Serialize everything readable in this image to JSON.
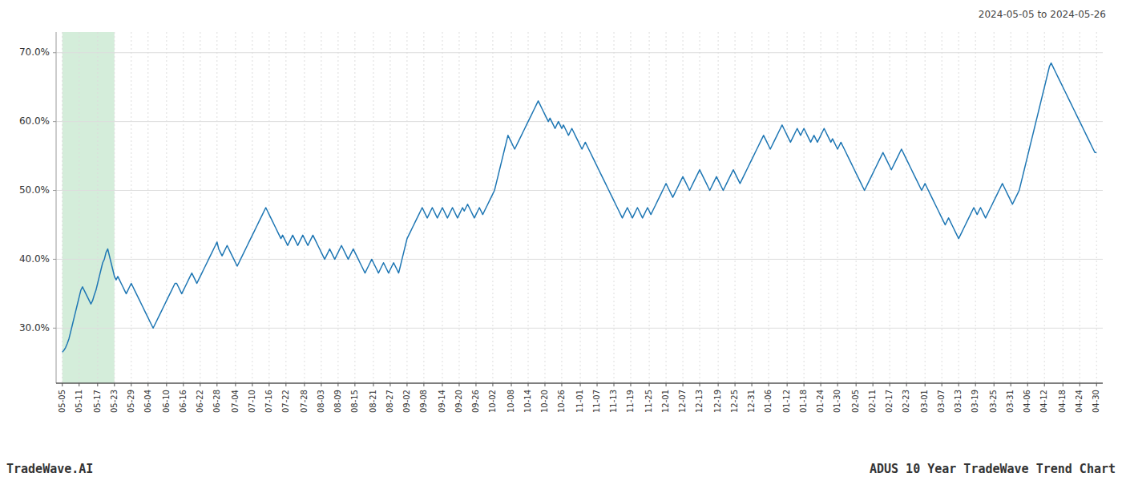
{
  "chart_data": {
    "type": "line",
    "title": "ADUS 10 Year TradeWave Trend Chart",
    "subtitle": "2024-05-05 to 2024-05-26",
    "annotations": [
      "TradeWave.AI"
    ],
    "color": "#1f77b4",
    "grid": true,
    "ylim": [
      22,
      73
    ],
    "yticks": [
      {
        "value": 30.0,
        "label": "30.0%"
      },
      {
        "value": 40.0,
        "label": "40.0%"
      },
      {
        "value": 50.0,
        "label": "50.0%"
      },
      {
        "value": 60.0,
        "label": "60.0%"
      },
      {
        "value": 70.0,
        "label": "70.0%"
      }
    ],
    "highlight": {
      "start": "05-05",
      "end": "05-23",
      "color": "#d4edda"
    },
    "categories": [
      "05-05",
      null,
      null,
      null,
      null,
      null,
      null,
      null,
      null,
      null,
      "05-11",
      null,
      null,
      null,
      null,
      null,
      null,
      null,
      null,
      null,
      null,
      "05-17",
      null,
      null,
      null,
      null,
      null,
      null,
      null,
      null,
      null,
      "05-23",
      null,
      null,
      null,
      null,
      null,
      null,
      null,
      null,
      null,
      "05-29",
      null,
      null,
      null,
      null,
      null,
      null,
      null,
      null,
      null,
      "06-04",
      null,
      null,
      null,
      null,
      null,
      null,
      null,
      null,
      null,
      null,
      "06-10",
      null,
      null,
      null,
      null,
      null,
      null,
      null,
      null,
      null,
      "06-16",
      null,
      null,
      null,
      null,
      null,
      null,
      null,
      null,
      null,
      "06-22",
      null,
      null,
      null,
      null,
      null,
      null,
      null,
      null,
      null,
      "06-28",
      null,
      null,
      null,
      null,
      null,
      null,
      null,
      null,
      null,
      null,
      "07-04",
      null,
      null,
      null,
      null,
      null,
      null,
      null,
      null,
      null,
      "07-10",
      null,
      null,
      null,
      null,
      null,
      null,
      null,
      null,
      null,
      "07-16",
      null,
      null,
      null,
      null,
      null,
      null,
      null,
      null,
      null,
      "07-22",
      null,
      null,
      null,
      null,
      null,
      null,
      null,
      null,
      null,
      null,
      "07-28",
      null,
      null,
      null,
      null,
      null,
      null,
      null,
      null,
      null,
      "08-03",
      null,
      null,
      null,
      null,
      null,
      null,
      null,
      null,
      null,
      "08-09",
      null,
      null,
      null,
      null,
      null,
      null,
      null,
      null,
      null,
      "08-15",
      null,
      null,
      null,
      null,
      null,
      null,
      null,
      null,
      null,
      null,
      "08-21",
      null,
      null,
      null,
      null,
      null,
      null,
      null,
      null,
      null,
      "08-27",
      null,
      null,
      null,
      null,
      null,
      null,
      null,
      null,
      null,
      "09-02",
      null,
      null,
      null,
      null,
      null,
      null,
      null,
      null,
      null,
      "09-08",
      null,
      null,
      null,
      null,
      null,
      null,
      null,
      null,
      null,
      null,
      "09-14",
      null,
      null,
      null,
      null,
      null,
      null,
      null,
      null,
      null,
      "09-20",
      null,
      null,
      null,
      null,
      null,
      null,
      null,
      null,
      null,
      "09-26",
      null,
      null,
      null,
      null,
      null,
      null,
      null,
      null,
      null,
      "10-02",
      null,
      null,
      null,
      null,
      null,
      null,
      null,
      null,
      null,
      null,
      "10-08",
      null,
      null,
      null,
      null,
      null,
      null,
      null,
      null,
      null,
      "10-14",
      null,
      null,
      null,
      null,
      null,
      null,
      null,
      null,
      null,
      "10-20",
      null,
      null,
      null,
      null,
      null,
      null,
      null,
      null,
      null,
      "10-26",
      null,
      null,
      null,
      null,
      null,
      null,
      null,
      null,
      null,
      null,
      "11-01",
      null,
      null,
      null,
      null,
      null,
      null,
      null,
      null,
      null,
      "11-07",
      null,
      null,
      null,
      null,
      null,
      null,
      null,
      null,
      null,
      "11-13",
      null,
      null,
      null,
      null,
      null,
      null,
      null,
      null,
      null,
      "11-19",
      null,
      null,
      null,
      null,
      null,
      null,
      null,
      null,
      null,
      null,
      "11-25",
      null,
      null,
      null,
      null,
      null,
      null,
      null,
      null,
      null,
      "12-01",
      null,
      null,
      null,
      null,
      null,
      null,
      null,
      null,
      null,
      "12-07",
      null,
      null,
      null,
      null,
      null,
      null,
      null,
      null,
      null,
      "12-13",
      null,
      null,
      null,
      null,
      null,
      null,
      null,
      null,
      null,
      null,
      "12-19",
      null,
      null,
      null,
      null,
      null,
      null,
      null,
      null,
      null,
      "12-25",
      null,
      null,
      null,
      null,
      null,
      null,
      null,
      null,
      null,
      "12-31",
      null,
      null,
      null,
      null,
      null,
      null,
      null,
      null,
      null,
      "01-06",
      null,
      null,
      null,
      null,
      null,
      null,
      null,
      null,
      null,
      null,
      "01-12",
      null,
      null,
      null,
      null,
      null,
      null,
      null,
      null,
      null,
      "01-18",
      null,
      null,
      null,
      null,
      null,
      null,
      null,
      null,
      null,
      "01-24",
      null,
      null,
      null,
      null,
      null,
      null,
      null,
      null,
      null,
      "01-30",
      null,
      null,
      null,
      null,
      null,
      null,
      null,
      null,
      null,
      null,
      "02-05",
      null,
      null,
      null,
      null,
      null,
      null,
      null,
      null,
      null,
      "02-11",
      null,
      null,
      null,
      null,
      null,
      null,
      null,
      null,
      null,
      "02-17",
      null,
      null,
      null,
      null,
      null,
      null,
      null,
      null,
      null,
      "02-23",
      null,
      null,
      null,
      null,
      null,
      null,
      null,
      null,
      null,
      null,
      "03-01",
      null,
      null,
      null,
      null,
      null,
      null,
      null,
      null,
      null,
      "03-07",
      null,
      null,
      null,
      null,
      null,
      null,
      null,
      null,
      null,
      "03-13",
      null,
      null,
      null,
      null,
      null,
      null,
      null,
      null,
      null,
      "03-19",
      null,
      null,
      null,
      null,
      null,
      null,
      null,
      null,
      null,
      null,
      "03-25",
      null,
      null,
      null,
      null,
      null,
      null,
      null,
      null,
      null,
      "03-31",
      null,
      null,
      null,
      null,
      null,
      null,
      null,
      null,
      null,
      "04-06",
      null,
      null,
      null,
      null,
      null,
      null,
      null,
      null,
      null,
      "04-12",
      null,
      null,
      null,
      null,
      null,
      null,
      null,
      null,
      null,
      null,
      "04-18",
      null,
      null,
      null,
      null,
      null,
      null,
      null,
      null,
      null,
      "04-24",
      null,
      null,
      null,
      null,
      null,
      null,
      null,
      null,
      null,
      "04-30"
    ],
    "values": [
      26.5,
      26.8,
      27.2,
      27.8,
      28.5,
      29.5,
      30.5,
      31.5,
      32.5,
      33.5,
      34.5,
      35.5,
      36.0,
      35.5,
      35.0,
      34.5,
      34.0,
      33.5,
      34.0,
      34.8,
      35.5,
      36.5,
      37.5,
      38.5,
      39.5,
      40.0,
      41.0,
      41.5,
      40.5,
      39.5,
      38.5,
      37.5,
      37.0,
      37.5,
      37.0,
      36.5,
      36.0,
      35.5,
      35.0,
      35.5,
      36.0,
      36.5,
      36.0,
      35.5,
      35.0,
      34.5,
      34.0,
      33.5,
      33.0,
      32.5,
      32.0,
      31.5,
      31.0,
      30.5,
      30.0,
      30.5,
      31.0,
      31.5,
      32.0,
      32.5,
      33.0,
      33.5,
      34.0,
      34.5,
      35.0,
      35.5,
      36.0,
      36.5,
      36.5,
      36.0,
      35.5,
      35.0,
      35.5,
      36.0,
      36.5,
      37.0,
      37.5,
      38.0,
      37.5,
      37.0,
      36.5,
      37.0,
      37.5,
      38.0,
      38.5,
      39.0,
      39.5,
      40.0,
      40.5,
      41.0,
      41.5,
      42.0,
      42.5,
      41.5,
      41.0,
      40.5,
      41.0,
      41.5,
      42.0,
      41.5,
      41.0,
      40.5,
      40.0,
      39.5,
      39.0,
      39.5,
      40.0,
      40.5,
      41.0,
      41.5,
      42.0,
      42.5,
      43.0,
      43.5,
      44.0,
      44.5,
      45.0,
      45.5,
      46.0,
      46.5,
      47.0,
      47.5,
      47.0,
      46.5,
      46.0,
      45.5,
      45.0,
      44.5,
      44.0,
      43.5,
      43.0,
      43.5,
      43.0,
      42.5,
      42.0,
      42.5,
      43.0,
      43.5,
      43.0,
      42.5,
      42.0,
      42.5,
      43.0,
      43.5,
      43.0,
      42.5,
      42.0,
      42.5,
      43.0,
      43.5,
      43.0,
      42.5,
      42.0,
      41.5,
      41.0,
      40.5,
      40.0,
      40.5,
      41.0,
      41.5,
      41.0,
      40.5,
      40.0,
      40.5,
      41.0,
      41.5,
      42.0,
      41.5,
      41.0,
      40.5,
      40.0,
      40.5,
      41.0,
      41.5,
      41.0,
      40.5,
      40.0,
      39.5,
      39.0,
      38.5,
      38.0,
      38.5,
      39.0,
      39.5,
      40.0,
      39.5,
      39.0,
      38.5,
      38.0,
      38.5,
      39.0,
      39.5,
      39.0,
      38.5,
      38.0,
      38.5,
      39.0,
      39.5,
      39.0,
      38.5,
      38.0,
      39.0,
      40.0,
      41.0,
      42.0,
      43.0,
      43.5,
      44.0,
      44.5,
      45.0,
      45.5,
      46.0,
      46.5,
      47.0,
      47.5,
      47.0,
      46.5,
      46.0,
      46.5,
      47.0,
      47.5,
      47.0,
      46.5,
      46.0,
      46.5,
      47.0,
      47.5,
      47.0,
      46.5,
      46.0,
      46.5,
      47.0,
      47.5,
      47.0,
      46.5,
      46.0,
      46.5,
      47.0,
      47.5,
      47.0,
      47.5,
      48.0,
      47.5,
      47.0,
      46.5,
      46.0,
      46.5,
      47.0,
      47.5,
      47.0,
      46.5,
      47.0,
      47.5,
      48.0,
      48.5,
      49.0,
      49.5,
      50.0,
      51.0,
      52.0,
      53.0,
      54.0,
      55.0,
      56.0,
      57.0,
      58.0,
      57.5,
      57.0,
      56.5,
      56.0,
      56.5,
      57.0,
      57.5,
      58.0,
      58.5,
      59.0,
      59.5,
      60.0,
      60.5,
      61.0,
      61.5,
      62.0,
      62.5,
      63.0,
      62.5,
      62.0,
      61.5,
      61.0,
      60.5,
      60.0,
      60.5,
      60.0,
      59.5,
      59.0,
      59.5,
      60.0,
      59.5,
      59.0,
      59.5,
      59.0,
      58.5,
      58.0,
      58.5,
      59.0,
      58.5,
      58.0,
      57.5,
      57.0,
      56.5,
      56.0,
      56.5,
      57.0,
      56.5,
      56.0,
      55.5,
      55.0,
      54.5,
      54.0,
      53.5,
      53.0,
      52.5,
      52.0,
      51.5,
      51.0,
      50.5,
      50.0,
      49.5,
      49.0,
      48.5,
      48.0,
      47.5,
      47.0,
      46.5,
      46.0,
      46.5,
      47.0,
      47.5,
      47.0,
      46.5,
      46.0,
      46.5,
      47.0,
      47.5,
      47.0,
      46.5,
      46.0,
      46.5,
      47.0,
      47.5,
      47.0,
      46.5,
      47.0,
      47.5,
      48.0,
      48.5,
      49.0,
      49.5,
      50.0,
      50.5,
      51.0,
      50.5,
      50.0,
      49.5,
      49.0,
      49.5,
      50.0,
      50.5,
      51.0,
      51.5,
      52.0,
      51.5,
      51.0,
      50.5,
      50.0,
      50.5,
      51.0,
      51.5,
      52.0,
      52.5,
      53.0,
      52.5,
      52.0,
      51.5,
      51.0,
      50.5,
      50.0,
      50.5,
      51.0,
      51.5,
      52.0,
      51.5,
      51.0,
      50.5,
      50.0,
      50.5,
      51.0,
      51.5,
      52.0,
      52.5,
      53.0,
      52.5,
      52.0,
      51.5,
      51.0,
      51.5,
      52.0,
      52.5,
      53.0,
      53.5,
      54.0,
      54.5,
      55.0,
      55.5,
      56.0,
      56.5,
      57.0,
      57.5,
      58.0,
      57.5,
      57.0,
      56.5,
      56.0,
      56.5,
      57.0,
      57.5,
      58.0,
      58.5,
      59.0,
      59.5,
      59.0,
      58.5,
      58.0,
      57.5,
      57.0,
      57.5,
      58.0,
      58.5,
      59.0,
      58.5,
      58.0,
      58.5,
      59.0,
      58.5,
      58.0,
      57.5,
      57.0,
      57.5,
      58.0,
      57.5,
      57.0,
      57.5,
      58.0,
      58.5,
      59.0,
      58.5,
      58.0,
      57.5,
      57.0,
      57.5,
      57.0,
      56.5,
      56.0,
      56.5,
      57.0,
      56.5,
      56.0,
      55.5,
      55.0,
      54.5,
      54.0,
      53.5,
      53.0,
      52.5,
      52.0,
      51.5,
      51.0,
      50.5,
      50.0,
      50.5,
      51.0,
      51.5,
      52.0,
      52.5,
      53.0,
      53.5,
      54.0,
      54.5,
      55.0,
      55.5,
      55.0,
      54.5,
      54.0,
      53.5,
      53.0,
      53.5,
      54.0,
      54.5,
      55.0,
      55.5,
      56.0,
      55.5,
      55.0,
      54.5,
      54.0,
      53.5,
      53.0,
      52.5,
      52.0,
      51.5,
      51.0,
      50.5,
      50.0,
      50.5,
      51.0,
      50.5,
      50.0,
      49.5,
      49.0,
      48.5,
      48.0,
      47.5,
      47.0,
      46.5,
      46.0,
      45.5,
      45.0,
      45.5,
      46.0,
      45.5,
      45.0,
      44.5,
      44.0,
      43.5,
      43.0,
      43.5,
      44.0,
      44.5,
      45.0,
      45.5,
      46.0,
      46.5,
      47.0,
      47.5,
      47.0,
      46.5,
      47.0,
      47.5,
      47.0,
      46.5,
      46.0,
      46.5,
      47.0,
      47.5,
      48.0,
      48.5,
      49.0,
      49.5,
      50.0,
      50.5,
      51.0,
      50.5,
      50.0,
      49.5,
      49.0,
      48.5,
      48.0,
      48.5,
      49.0,
      49.5,
      50.0,
      51.0,
      52.0,
      53.0,
      54.0,
      55.0,
      56.0,
      57.0,
      58.0,
      59.0,
      60.0,
      61.0,
      62.0,
      63.0,
      64.0,
      65.0,
      66.0,
      67.0,
      68.0,
      68.5,
      68.0,
      67.5,
      67.0,
      66.5,
      66.0,
      65.5,
      65.0,
      64.5,
      64.0,
      63.5,
      63.0,
      62.5,
      62.0,
      61.5,
      61.0,
      60.5,
      60.0,
      59.5,
      59.0,
      58.5,
      58.0,
      57.5,
      57.0,
      56.5,
      56.0,
      55.5,
      55.5
    ]
  }
}
